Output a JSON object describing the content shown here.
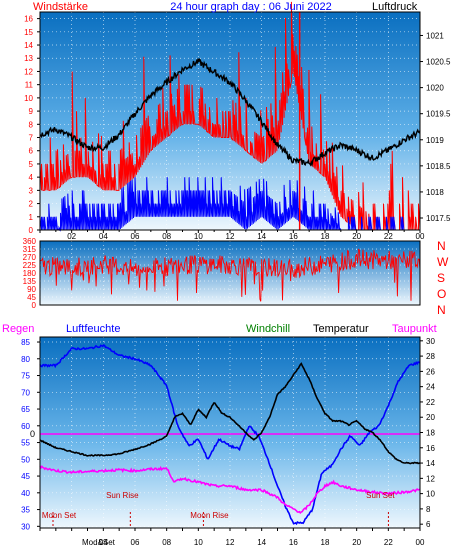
{
  "title": "24 hour graph day : 06 Juni 2022",
  "colors": {
    "wind": "#ff0000",
    "gust": "#0000ff",
    "pressure": "#000000",
    "humidity": "#0000ff",
    "temperature": "#000000",
    "dewpoint": "#ff00ff",
    "windchill": "#008000",
    "rain": "#ff00ff",
    "axis_blue": "#0000ff",
    "axis_red": "#ff0000"
  },
  "chart_data": [
    {
      "type": "line",
      "panel": "wind-pressure",
      "left_label": "Windstärke",
      "right_label": "Luftdruck",
      "x_ticks": [
        "02",
        "04",
        "06",
        "08",
        "10",
        "12",
        "14",
        "16",
        "18",
        "20",
        "22",
        "00"
      ],
      "left_ticks": [
        0,
        1,
        2,
        3,
        4,
        5,
        6,
        7,
        8,
        9,
        10,
        11,
        12,
        13,
        14,
        15,
        16
      ],
      "left_range": [
        0,
        16.5
      ],
      "right_ticks": [
        1017.5,
        1018,
        1018.5,
        1019,
        1019.5,
        1020,
        1020.5,
        1021
      ],
      "right_range": [
        1017.27,
        1021.45
      ],
      "pressure_series": [
        [
          0,
          1019.1
        ],
        [
          1,
          1019.2
        ],
        [
          2,
          1019.05
        ],
        [
          3,
          1018.85
        ],
        [
          4,
          1018.85
        ],
        [
          5,
          1019.1
        ],
        [
          6,
          1019.5
        ],
        [
          7,
          1019.85
        ],
        [
          8,
          1020.1
        ],
        [
          9,
          1020.35
        ],
        [
          10,
          1020.5
        ],
        [
          11,
          1020.3
        ],
        [
          12,
          1020.1
        ],
        [
          13,
          1019.75
        ],
        [
          14,
          1019.35
        ],
        [
          15,
          1018.9
        ],
        [
          16,
          1018.6
        ],
        [
          17,
          1018.55
        ],
        [
          18,
          1018.75
        ],
        [
          19,
          1018.9
        ],
        [
          20,
          1018.8
        ],
        [
          21,
          1018.65
        ],
        [
          22,
          1018.8
        ],
        [
          23,
          1019.0
        ],
        [
          24,
          1019.15
        ]
      ],
      "wind_series": [
        [
          0,
          5
        ],
        [
          1,
          5
        ],
        [
          2,
          6
        ],
        [
          3,
          6
        ],
        [
          4,
          5
        ],
        [
          5,
          5
        ],
        [
          6,
          6
        ],
        [
          7,
          8
        ],
        [
          8,
          9
        ],
        [
          9,
          10
        ],
        [
          10,
          10
        ],
        [
          11,
          9
        ],
        [
          12,
          9
        ],
        [
          13,
          8
        ],
        [
          14,
          7
        ],
        [
          15,
          8
        ],
        [
          16,
          14
        ],
        [
          17,
          7
        ],
        [
          18,
          6
        ],
        [
          19,
          3
        ],
        [
          20,
          2
        ],
        [
          21,
          1
        ],
        [
          22,
          1
        ],
        [
          23,
          1
        ],
        [
          24,
          1
        ]
      ],
      "gust_series": [
        [
          0,
          1
        ],
        [
          1,
          1
        ],
        [
          2,
          2
        ],
        [
          3,
          2
        ],
        [
          4,
          2
        ],
        [
          5,
          2
        ],
        [
          6,
          3
        ],
        [
          7,
          3
        ],
        [
          8,
          3
        ],
        [
          9,
          3
        ],
        [
          10,
          3
        ],
        [
          11,
          3
        ],
        [
          12,
          3
        ],
        [
          13,
          2
        ],
        [
          14,
          3
        ],
        [
          15,
          2
        ],
        [
          16,
          3
        ],
        [
          17,
          2
        ],
        [
          18,
          2
        ],
        [
          19,
          0
        ],
        [
          20,
          0
        ],
        [
          21,
          0
        ],
        [
          22,
          0
        ],
        [
          23,
          0
        ],
        [
          24,
          0
        ]
      ]
    },
    {
      "type": "line",
      "panel": "wind-direction",
      "left_ticks": [
        0,
        45,
        90,
        135,
        180,
        225,
        270,
        315,
        360
      ],
      "left_range": [
        0,
        360
      ],
      "compass": [
        "N",
        "W",
        "S",
        "O",
        "N"
      ],
      "direction_series": [
        [
          0,
          220
        ],
        [
          2,
          210
        ],
        [
          4,
          230
        ],
        [
          6,
          200
        ],
        [
          8,
          215
        ],
        [
          10,
          230
        ],
        [
          12,
          225
        ],
        [
          14,
          210
        ],
        [
          16,
          205
        ],
        [
          18,
          230
        ],
        [
          20,
          260
        ],
        [
          22,
          250
        ],
        [
          24,
          255
        ]
      ]
    },
    {
      "type": "line",
      "panel": "temperature-humidity",
      "labels": {
        "rain": "Regen",
        "humidity": "Luftfeuchte",
        "windchill": "Windchill",
        "temperature": "Temperatur",
        "dewpoint": "Taupunkt"
      },
      "left_ticks": [
        30,
        35,
        40,
        45,
        50,
        55,
        60,
        65,
        70,
        75,
        80,
        85
      ],
      "left_range": [
        29.5,
        86.5
      ],
      "right_ticks": [
        6,
        8,
        10,
        12,
        14,
        16,
        18,
        20,
        22,
        24,
        26,
        28,
        30
      ],
      "right_range": [
        5.5,
        30.5
      ],
      "rain_value": "0",
      "events": [
        {
          "label": "Moon Set",
          "hour": 1.2,
          "level": "low"
        },
        {
          "label": "Sun Rise",
          "hour": 5.2,
          "level": "high"
        },
        {
          "label": "Moon Rise",
          "hour": 10.7,
          "level": "low"
        },
        {
          "label": "Sun Set",
          "hour": 21.5,
          "level": "high"
        }
      ],
      "bottom_label": "Mod&Set",
      "humidity_series": [
        [
          0,
          78
        ],
        [
          1,
          78
        ],
        [
          2,
          83
        ],
        [
          3,
          83
        ],
        [
          4,
          84
        ],
        [
          5,
          81
        ],
        [
          6,
          80
        ],
        [
          7,
          78
        ],
        [
          8,
          72
        ],
        [
          8.7,
          60
        ],
        [
          9.4,
          54
        ],
        [
          10,
          56
        ],
        [
          10.6,
          50
        ],
        [
          11.3,
          56
        ],
        [
          12,
          54
        ],
        [
          12.6,
          53
        ],
        [
          13.2,
          60
        ],
        [
          13.8,
          57
        ],
        [
          14.4,
          50
        ],
        [
          15,
          42
        ],
        [
          15.5,
          36
        ],
        [
          16,
          31
        ],
        [
          16.6,
          31
        ],
        [
          17.2,
          35
        ],
        [
          17.8,
          46
        ],
        [
          18.4,
          48
        ],
        [
          19,
          53
        ],
        [
          19.6,
          57
        ],
        [
          20.2,
          54
        ],
        [
          20.8,
          58
        ],
        [
          21.4,
          60
        ],
        [
          22,
          66
        ],
        [
          22.6,
          73
        ],
        [
          23.3,
          78
        ],
        [
          24,
          79
        ]
      ],
      "temperature_series": [
        [
          0,
          17
        ],
        [
          1,
          16
        ],
        [
          2,
          15.5
        ],
        [
          3,
          15
        ],
        [
          4,
          15
        ],
        [
          5,
          15.2
        ],
        [
          6,
          15.8
        ],
        [
          7,
          16.5
        ],
        [
          8,
          17.5
        ],
        [
          8.5,
          20
        ],
        [
          9,
          20.5
        ],
        [
          9.5,
          19
        ],
        [
          10,
          21
        ],
        [
          10.5,
          20
        ],
        [
          11,
          22
        ],
        [
          11.5,
          20.5
        ],
        [
          12,
          20
        ],
        [
          12.5,
          19
        ],
        [
          13,
          18
        ],
        [
          13.5,
          17
        ],
        [
          14,
          18
        ],
        [
          14.5,
          20
        ],
        [
          15,
          23
        ],
        [
          15.5,
          24
        ],
        [
          16,
          25.5
        ],
        [
          16.5,
          27
        ],
        [
          17,
          25
        ],
        [
          17.5,
          22.5
        ],
        [
          18,
          20.5
        ],
        [
          18.5,
          19.5
        ],
        [
          19,
          19.5
        ],
        [
          19.5,
          19
        ],
        [
          20,
          19.5
        ],
        [
          20.5,
          18.5
        ],
        [
          21,
          18
        ],
        [
          21.5,
          17
        ],
        [
          22,
          15.5
        ],
        [
          22.5,
          14.5
        ],
        [
          23,
          14
        ],
        [
          24,
          14
        ]
      ],
      "dewpoint_series": [
        [
          0,
          13.5
        ],
        [
          1,
          13
        ],
        [
          2,
          12.8
        ],
        [
          3,
          12.9
        ],
        [
          4,
          13
        ],
        [
          5,
          13.1
        ],
        [
          6,
          13
        ],
        [
          7,
          13.2
        ],
        [
          8,
          13.3
        ],
        [
          8.5,
          11.5
        ],
        [
          9,
          12
        ],
        [
          10,
          11.5
        ],
        [
          11,
          11
        ],
        [
          12,
          11
        ],
        [
          13,
          10.5
        ],
        [
          14,
          10.5
        ],
        [
          15,
          9.5
        ],
        [
          15.5,
          8.5
        ],
        [
          16,
          8
        ],
        [
          16.5,
          7.5
        ],
        [
          17,
          8.5
        ],
        [
          17.5,
          10
        ],
        [
          18,
          11
        ],
        [
          18.5,
          11.5
        ],
        [
          19,
          11
        ],
        [
          20,
          10.5
        ],
        [
          21,
          10.2
        ],
        [
          22,
          10
        ],
        [
          23,
          10.2
        ],
        [
          24,
          10.5
        ]
      ]
    }
  ]
}
